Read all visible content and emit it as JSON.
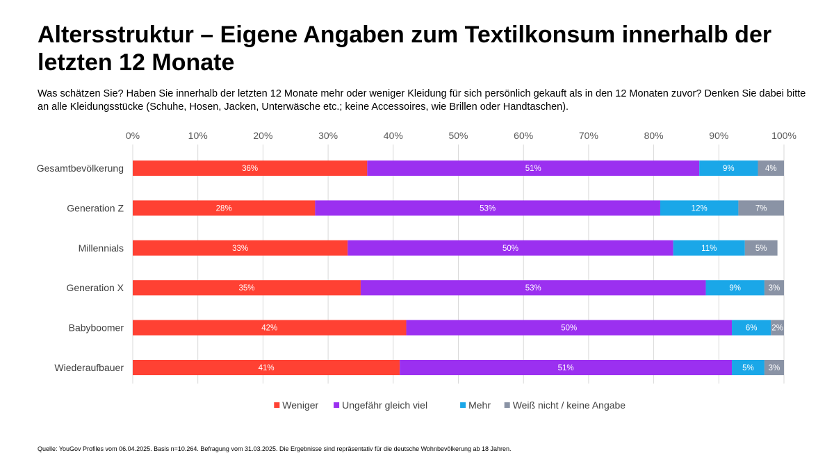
{
  "title": "Altersstruktur – Eigene Angaben zum Textilkonsum innerhalb der letzten 12 Monate",
  "question": "Was schätzen Sie? Haben Sie innerhalb der letzten 12 Monate mehr oder weniger Kleidung für sich persönlich gekauft als in den 12 Monaten zuvor? Denken Sie dabei bitte an alle Kleidungsstücke (Schuhe, Hosen, Jacken, Unterwäsche etc.; keine Accessoires, wie Brillen oder Handtaschen).",
  "source": "Quelle: YouGov Profiles vom 06.04.2025. Basis n=10.264. Befragung vom 31.03.2025. Die Ergebnisse sind repräsentativ für die deutsche Wohnbevölkerung ab 18 Jahren.",
  "chart_data": {
    "type": "bar",
    "orientation": "horizontal",
    "stacked": true,
    "title": "Altersstruktur – Eigene Angaben zum Textilkonsum innerhalb der letzten 12 Monate",
    "xlabel": "",
    "ylabel": "",
    "xlim": [
      0,
      100
    ],
    "x_ticks": [
      "0%",
      "10%",
      "20%",
      "30%",
      "40%",
      "50%",
      "60%",
      "70%",
      "80%",
      "90%",
      "100%"
    ],
    "tick_position": "top",
    "grid": "vertical",
    "legend_position": "bottom",
    "categories": [
      "Gesamtbevölkerung",
      "Generation Z",
      "Millennials",
      "Generation X",
      "Babyboomer",
      "Wiederaufbauer"
    ],
    "series": [
      {
        "name": "Weniger",
        "color": "#ff4133",
        "values": [
          36,
          28,
          33,
          35,
          42,
          41
        ],
        "labels": [
          "36%",
          "28%",
          "33%",
          "35%",
          "42%",
          "41%"
        ]
      },
      {
        "name": "Ungefähr gleich viel",
        "color": "#9b30f0",
        "values": [
          51,
          53,
          50,
          53,
          50,
          51
        ],
        "labels": [
          "51%",
          "53%",
          "50%",
          "53%",
          "50%",
          "51%"
        ]
      },
      {
        "name": "Mehr",
        "color": "#1aa7e8",
        "values": [
          9,
          12,
          11,
          9,
          6,
          5
        ],
        "labels": [
          "9%",
          "12%",
          "11%",
          "9%",
          "6%",
          "5%"
        ]
      },
      {
        "name": "Weiß nicht / keine Angabe",
        "color": "#8a93a5",
        "values": [
          4,
          7,
          5,
          3,
          2,
          3
        ],
        "labels": [
          "4%",
          "7%",
          "5%",
          "3%",
          "2%",
          "3%"
        ]
      }
    ]
  }
}
